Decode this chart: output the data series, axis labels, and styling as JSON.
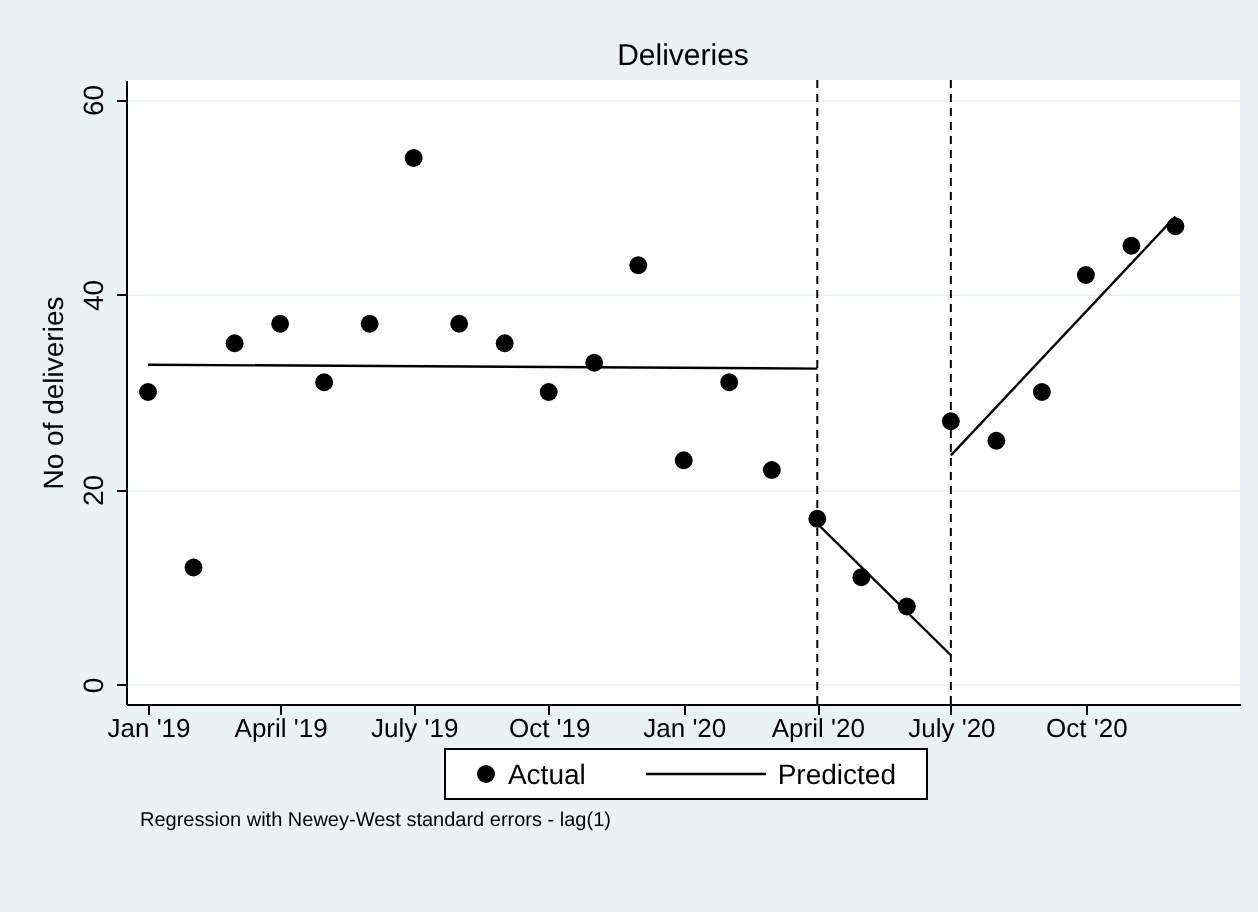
{
  "chart_data": {
    "type": "scatter",
    "title": "Deliveries",
    "ylabel": "No of deliveries",
    "x": [
      "2019-01",
      "2019-02",
      "2019-03",
      "2019-04",
      "2019-05",
      "2019-06",
      "2019-07",
      "2019-08",
      "2019-09",
      "2019-10",
      "2019-11",
      "2019-12",
      "2020-01",
      "2020-02",
      "2020-03",
      "2020-04",
      "2020-05",
      "2020-06",
      "2020-07",
      "2020-08",
      "2020-09",
      "2020-10",
      "2020-11",
      "2020-12"
    ],
    "series": [
      {
        "name": "Actual",
        "color": "#000000",
        "values": [
          30,
          12,
          35,
          37,
          31,
          37,
          54,
          37,
          35,
          30,
          33,
          43,
          23,
          31,
          22,
          17,
          11,
          8,
          27,
          25,
          30,
          42,
          45,
          47
        ]
      },
      {
        "name": "Predicted",
        "type": "line",
        "color": "#000000",
        "marker": "none",
        "x": [
          "2019-01",
          "2020-04",
          null,
          "2020-04",
          "2020-07",
          null,
          "2020-07",
          "2020-12"
        ],
        "values": [
          32.8,
          32.4,
          null,
          16.5,
          3,
          null,
          23.5,
          48
        ]
      }
    ],
    "xlim": [
      "2018-12-17",
      "2021-01-14"
    ],
    "xticks": [
      {
        "value": "2019-01",
        "label": "Jan '19"
      },
      {
        "value": "2019-04",
        "label": "April '19"
      },
      {
        "value": "2019-07",
        "label": "July '19"
      },
      {
        "value": "2019-10",
        "label": "Oct '19"
      },
      {
        "value": "2020-01",
        "label": "Jan '20"
      },
      {
        "value": "2020-04",
        "label": "April '20"
      },
      {
        "value": "2020-07",
        "label": "July '20"
      },
      {
        "value": "2020-10",
        "label": "Oct '20"
      }
    ],
    "ylim": [
      -2,
      62
    ],
    "yticks": [
      0,
      20,
      40,
      60
    ],
    "ref_lines": [
      {
        "axis": "x",
        "value": "2020-04",
        "line_style": "dashed",
        "color": "#000000"
      },
      {
        "axis": "x",
        "value": "2020-07",
        "line_style": "dashed",
        "color": "#000000"
      }
    ],
    "grid": "y",
    "legend": "bottom",
    "marker": "circle",
    "annotations": [
      "Regression with Newey-West standard errors - lag(1)"
    ]
  }
}
